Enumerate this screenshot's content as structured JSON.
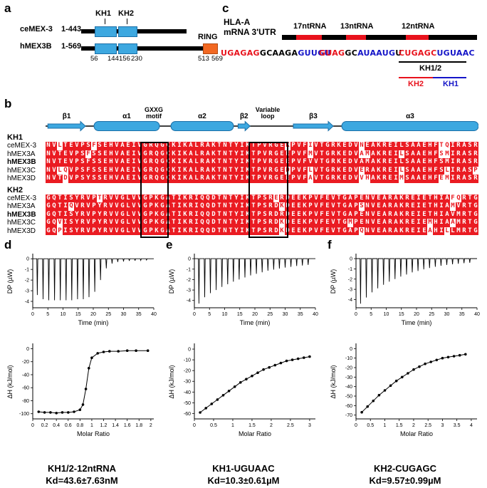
{
  "colors": {
    "alignment_red": "#ea1b22",
    "rna_red": "#e8121c",
    "rna_blue": "#1515c8",
    "kh_blue": "#3DA8E0",
    "ring_orange": "#F26822",
    "black": "#000000"
  },
  "panel_a": {
    "label": "a",
    "kh1_label": "KH1",
    "kh2_label": "KH2",
    "ring_label": "RING",
    "rows": [
      {
        "name": "ceMEX-3",
        "range": "1-443"
      },
      {
        "name": "hMEX3B",
        "range": "1-569"
      }
    ],
    "domain_numbers": [
      "56",
      "144",
      "156",
      "230"
    ],
    "ring_numbers": [
      "513",
      "569"
    ]
  },
  "panel_c": {
    "label": "c",
    "gene": "HLA-A",
    "utr": "mRNA 3'UTR",
    "fragments": [
      "17ntRNA",
      "13ntRNA",
      "12ntRNA"
    ],
    "sequences": [
      {
        "name": "17ntRNA-sequence",
        "segments": [
          {
            "text": "UGAGAG",
            "color": "rna_red"
          },
          {
            "text": "GCAAGA",
            "color": "black"
          },
          {
            "text": "GUUGU",
            "color": "rna_blue"
          }
        ]
      },
      {
        "name": "13ntRNA-sequence",
        "segments": [
          {
            "text": "GUAG",
            "color": "rna_red"
          },
          {
            "text": "GC",
            "color": "black"
          },
          {
            "text": "AUAAUG",
            "color": "rna_blue"
          },
          {
            "text": "U",
            "color": "black"
          }
        ]
      },
      {
        "name": "12ntRNA-sequence",
        "segments": [
          {
            "text": "CUGAGC",
            "color": "rna_red"
          },
          {
            "text": "UGUAAC",
            "color": "rna_blue"
          }
        ]
      }
    ],
    "kh12_label": "KH1/2",
    "kh2_label": "KH2",
    "kh1_label": "KH1"
  },
  "panel_b": {
    "label": "b",
    "ss": {
      "elements": [
        {
          "type": "arrow",
          "label": "β1",
          "start": 0.4,
          "end": 7
        },
        {
          "type": "helix",
          "label": "α1",
          "start": 8.5,
          "end": 20
        },
        {
          "type": "helix",
          "label": "α2",
          "start": 22,
          "end": 33
        },
        {
          "type": "arrow",
          "label": "β2",
          "start": 33.8,
          "end": 35.9
        },
        {
          "type": "arrow",
          "label": "β3",
          "start": 43.5,
          "end": 50.5
        },
        {
          "type": "helix",
          "label": "α3",
          "start": 52,
          "end": 76
        }
      ],
      "gxxg_label": [
        "GXXG",
        "motif"
      ],
      "varloop_label": [
        "Variable",
        "loop"
      ],
      "gxxg_center_col": 19,
      "varloop_center_col": 39
    },
    "boxes": {
      "gxxg": {
        "start_col": 17,
        "n_cols": 4
      },
      "varloop": {
        "start_col": 36,
        "n_cols": 6
      }
    },
    "blocks": [
      {
        "name": "KH1",
        "rows": [
          {
            "name": "ceMEX-3",
            "bold": false,
            "seq": "NVlTEVPSfSEHVAEIVGRQGCKIKALRAKTNTYIKTPVRGEkPVFiVTGRKEDVnEAKREILSAAEHFtqIRASR"
          },
          {
            "name": "hMEX3A",
            "bold": false,
            "seq": "NVTEVPSfSSEHVAEIVGRQGCKIKALRAKTNTYIKTPVRGEEPVFmVTGRKEDVamAKREIlSAAEHFsmIRASR"
          },
          {
            "name": "hMEX3B",
            "bold": true,
            "seq": "NVTEVPSFSSEHVAEIVGRQGCKIKALRAKTNTYIKTPVRGEEPVFVVTGRKEDVAMAKREILSAAEHFSMIRASR"
          },
          {
            "name": "hMEX3C",
            "bold": false,
            "seq": "NVlqVPSFSSEHVAEIVGRQGCKIKALRAKTNTYIKTPVRGEdPVFlVTGRKEDVeRAKREIlSAAEHFSlIRASp"
          },
          {
            "name": "hMEX3D",
            "bold": false,
            "seq": "NVTdVPSYSSEHVAEIVGRQGCKIKALRAKTNTYIKTPVRGEEPVFaVTGRKEDVvhAKREImSAAEHFemIRASR"
          }
        ]
      },
      {
        "name": "KH2",
        "rows": [
          {
            "name": "ceMEX-3",
            "bold": false,
            "seq": "GQTISYRVPtRVVGLVVGPKGATIKRIQQDTNTYIKTPSReRDEEKPVFEVTGAPENVEARAKREIETHIAfqRTG"
          },
          {
            "name": "hMEX3A",
            "bold": false,
            "seq": "GQTIqVRVPYRVVGLVVGPKGATIKRIQQDTNTYIKTPSRDkDEEKPVFEVTGAPsNVEARAKREIETHIAmVRTG"
          },
          {
            "name": "hMEX3B",
            "bold": true,
            "seq": "GQTISYRVPYRVVGLVVGPKGATIKRIQQDTNTYIKTPSRDRDEEKPVFEVTGAPENVEARAKREIETHIAVMRTG"
          },
          {
            "name": "hMEX3C",
            "bold": false,
            "seq": "GQvISYRVPYRVVGLVVGPKGATIKRIQQDTNTYIKTPSRDkDEEKPVFEVTGmPENVEARAKREIEmHIAaMRTG"
          },
          {
            "name": "hMEX3D",
            "bold": false,
            "seq": "GQpISYRVPYRVVGLVVGPKGATIKRIQQDTNTYIKTPSRDkDEEKPVFEVTGAPqNVEARAKREIEaHIlLMRTG"
          }
        ]
      }
    ]
  },
  "chart_data": [
    {
      "panel": "d",
      "title": "KH1/2-12ntRNA",
      "kd": "Kd=43.6±7.63nM",
      "thermogram": {
        "type": "line",
        "xlabel": "Time (min)",
        "ylabel": "DP (µW)",
        "xlim": [
          0,
          40
        ],
        "ylim": [
          -4.6,
          0.35
        ],
        "xticks": [
          0,
          5,
          10,
          15,
          20,
          25,
          30,
          35,
          40
        ],
        "yticks": [
          0,
          -1,
          -2,
          -3,
          -4
        ],
        "spike_times": [
          1.5,
          3.4,
          5.3,
          7.2,
          9.1,
          11,
          12.9,
          14.8,
          16.7,
          18.6,
          20.5,
          22.4,
          24.3,
          26.2,
          28.1,
          30,
          31.9,
          33.8,
          35.7,
          37.6
        ],
        "spike_depths": [
          -3.4,
          -3.8,
          -3.9,
          -3.9,
          -3.9,
          -3.9,
          -3.9,
          -3.8,
          -3.8,
          -3.6,
          -3.1,
          -2.0,
          -0.9,
          -0.45,
          -0.3,
          -0.25,
          -0.2,
          -0.18,
          -0.15,
          -0.12
        ]
      },
      "binding": {
        "type": "scatter",
        "xlabel": "Molar Ratio",
        "ylabel": "ΔH (kJ/mol)",
        "xlim": [
          0,
          2.05
        ],
        "ylim": [
          -108,
          6
        ],
        "xticks": [
          0,
          0.2,
          0.4,
          0.6,
          0.8,
          1,
          1.2,
          1.4,
          1.6,
          1.8,
          2
        ],
        "yticks": [
          0,
          -20,
          -40,
          -60,
          -80,
          -100
        ],
        "x": [
          0.1,
          0.2,
          0.3,
          0.4,
          0.5,
          0.6,
          0.7,
          0.8,
          0.85,
          0.9,
          0.95,
          1.0,
          1.1,
          1.2,
          1.3,
          1.45,
          1.6,
          1.75,
          1.95
        ],
        "y": [
          -97,
          -98,
          -98,
          -99,
          -98,
          -98,
          -97,
          -94,
          -86,
          -62,
          -30,
          -14,
          -7,
          -5,
          -4,
          -4,
          -3,
          -3,
          -3
        ]
      }
    },
    {
      "panel": "e",
      "title": "KH1-UGUAAC",
      "kd": "Kd=10.3±0.61µM",
      "thermogram": {
        "type": "line",
        "xlabel": "Time (min)",
        "ylabel": "DP (µW)",
        "xlim": [
          0,
          40
        ],
        "ylim": [
          -4.7,
          0.35
        ],
        "xticks": [
          0,
          5,
          10,
          15,
          20,
          25,
          30,
          35,
          40
        ],
        "yticks": [
          0,
          -1,
          -2,
          -3,
          -4
        ],
        "spike_times": [
          1.5,
          3.4,
          5.3,
          7.2,
          9.1,
          11,
          12.9,
          14.8,
          16.7,
          18.6,
          20.5,
          22.4,
          24.3,
          26.2,
          28.1,
          30,
          31.9,
          33.8,
          35.7,
          37.6
        ],
        "spike_depths": [
          -4.3,
          -3.7,
          -3.3,
          -3.0,
          -2.7,
          -2.45,
          -2.2,
          -2.0,
          -1.8,
          -1.6,
          -1.45,
          -1.3,
          -1.15,
          -1.05,
          -0.95,
          -0.85,
          -0.78,
          -0.7,
          -0.65,
          -0.6
        ]
      },
      "binding": {
        "type": "scatter",
        "xlabel": "Molar Ratio",
        "ylabel": "ΔH (kJ/mol)",
        "xlim": [
          0,
          3.15
        ],
        "ylim": [
          -65,
          4
        ],
        "xticks": [
          0,
          0.5,
          1,
          1.5,
          2,
          2.5,
          3
        ],
        "yticks": [
          0,
          -10,
          -20,
          -30,
          -40,
          -50,
          -60
        ],
        "x": [
          0.15,
          0.3,
          0.45,
          0.6,
          0.75,
          0.9,
          1.05,
          1.2,
          1.35,
          1.5,
          1.65,
          1.8,
          1.95,
          2.1,
          2.25,
          2.4,
          2.55,
          2.7,
          2.85,
          3.0
        ],
        "y": [
          -59,
          -55,
          -51,
          -47,
          -43,
          -39,
          -35,
          -31,
          -28,
          -25,
          -22,
          -19,
          -17,
          -15,
          -13,
          -11,
          -10,
          -9,
          -8,
          -7
        ]
      }
    },
    {
      "panel": "f",
      "title": "KH2-CUGAGC",
      "kd": "Kd=9.57±0.99µM",
      "thermogram": {
        "type": "line",
        "xlabel": "Time (min)",
        "ylabel": "DP (µW)",
        "xlim": [
          0,
          40
        ],
        "ylim": [
          -4.8,
          0.35
        ],
        "xticks": [
          0,
          5,
          10,
          15,
          20,
          25,
          30,
          35,
          40
        ],
        "yticks": [
          0,
          -1,
          -2,
          -3,
          -4
        ],
        "spike_times": [
          1.5,
          3.4,
          5.3,
          7.2,
          9.1,
          11,
          12.9,
          14.8,
          16.7,
          18.6,
          20.5,
          22.4,
          24.3,
          26.2,
          28.1,
          30,
          31.9,
          33.8,
          35.7,
          37.6
        ],
        "spike_depths": [
          -4.4,
          -3.8,
          -3.3,
          -2.9,
          -2.55,
          -2.25,
          -2.0,
          -1.75,
          -1.55,
          -1.35,
          -1.2,
          -1.05,
          -0.92,
          -0.8,
          -0.7,
          -0.62,
          -0.55,
          -0.5,
          -0.45,
          -0.4
        ]
      },
      "binding": {
        "type": "scatter",
        "xlabel": "Molar Ratio",
        "ylabel": "ΔH (kJ/mol)",
        "xlim": [
          0,
          4.2
        ],
        "ylim": [
          -74,
          4
        ],
        "xticks": [
          0,
          0.5,
          1,
          1.5,
          2,
          2.5,
          3,
          3.5,
          4
        ],
        "yticks": [
          0,
          -10,
          -20,
          -30,
          -40,
          -50,
          -60,
          -70
        ],
        "x": [
          0.2,
          0.4,
          0.6,
          0.8,
          1.0,
          1.2,
          1.4,
          1.6,
          1.8,
          2.0,
          2.2,
          2.4,
          2.6,
          2.8,
          3.0,
          3.2,
          3.4,
          3.6,
          3.8
        ],
        "y": [
          -67,
          -61,
          -55,
          -49,
          -44,
          -39,
          -34,
          -30,
          -26,
          -22,
          -19,
          -16,
          -14,
          -12,
          -10,
          -9,
          -8,
          -7,
          -6
        ]
      }
    }
  ]
}
